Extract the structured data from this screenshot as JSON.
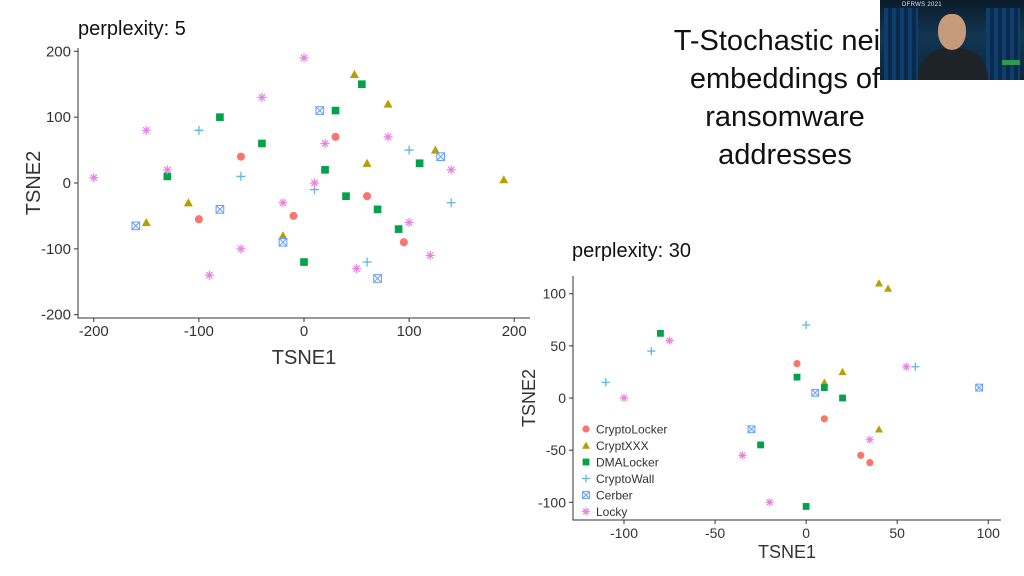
{
  "slide": {
    "title": "T-Stochastic neig\nembeddings of\nransomware\naddresses"
  },
  "webcam": {
    "banner_text": "DFRWS 2021"
  },
  "legend_entries": [
    {
      "label": "CryptoLocker",
      "color": "#F8766D",
      "shape": "circle"
    },
    {
      "label": "CryptXXX",
      "color": "#B79F00",
      "shape": "triangle"
    },
    {
      "label": "DMALocker",
      "color": "#00A34A",
      "shape": "square"
    },
    {
      "label": "CryptoWall",
      "color": "#5FB8D8",
      "shape": "plus"
    },
    {
      "label": "Cerber",
      "color": "#619CFF",
      "shape": "boxcross"
    },
    {
      "label": "Locky",
      "color": "#E882E0",
      "shape": "asterisk"
    }
  ],
  "chart_data": [
    {
      "type": "scatter",
      "title": "perplexity: 5",
      "xlabel": "TSNE1",
      "ylabel": "TSNE2",
      "xlim": [
        -215,
        215
      ],
      "ylim": [
        -205,
        205
      ],
      "xticks": [
        -200,
        -100,
        0,
        100,
        200
      ],
      "yticks": [
        -200,
        -100,
        0,
        100,
        200
      ],
      "xtick_labels": [
        "-200",
        "-100",
        "0",
        "100",
        "200"
      ],
      "ytick_labels": [
        "-200",
        "-100",
        "0",
        "100",
        "200"
      ],
      "grid": false,
      "legend": "none",
      "series": [
        {
          "name": "CryptoLocker",
          "x": [
            -100,
            30,
            95,
            -60,
            60,
            -10
          ],
          "y": [
            -55,
            70,
            -90,
            40,
            -20,
            -50
          ]
        },
        {
          "name": "CryptXXX",
          "x": [
            48,
            -110,
            -150,
            190,
            125,
            80,
            -20,
            60
          ],
          "y": [
            165,
            -30,
            -60,
            5,
            50,
            120,
            -80,
            30
          ]
        },
        {
          "name": "DMALocker",
          "x": [
            20,
            -40,
            70,
            110,
            -80,
            40,
            55,
            -130,
            0,
            90,
            30
          ],
          "y": [
            20,
            60,
            -40,
            30,
            100,
            -20,
            150,
            10,
            -120,
            -70,
            110
          ]
        },
        {
          "name": "CryptoWall",
          "x": [
            10,
            -100,
            60,
            140,
            -60,
            100
          ],
          "y": [
            -10,
            80,
            -120,
            -30,
            10,
            50
          ]
        },
        {
          "name": "Cerber",
          "x": [
            -160,
            15,
            70,
            130,
            -20,
            -80
          ],
          "y": [
            -65,
            110,
            -145,
            40,
            -90,
            -40
          ]
        },
        {
          "name": "Locky",
          "x": [
            0,
            10,
            -200,
            -20,
            -130,
            80,
            -60,
            140,
            50,
            -150,
            100,
            -40,
            20,
            120,
            -90
          ],
          "y": [
            190,
            0,
            8,
            -30,
            20,
            70,
            -100,
            20,
            -130,
            80,
            -60,
            130,
            60,
            -110,
            -140
          ]
        }
      ]
    },
    {
      "type": "scatter",
      "title": "perplexity: 30",
      "xlabel": "TSNE1",
      "ylabel": "TSNE2",
      "xlim": [
        -128,
        107
      ],
      "ylim": [
        -117,
        117
      ],
      "xticks": [
        -100,
        -50,
        0,
        50,
        100
      ],
      "yticks": [
        -100,
        -50,
        0,
        50,
        100
      ],
      "xtick_labels": [
        "-100",
        "-50",
        "0",
        "50",
        "100"
      ],
      "ytick_labels": [
        "-100",
        "-50",
        "0",
        "50",
        "100"
      ],
      "grid": false,
      "legend": "bottom-left",
      "series": [
        {
          "name": "CryptoLocker",
          "x": [
            -5,
            35,
            10,
            30
          ],
          "y": [
            33,
            -62,
            -20,
            -55
          ]
        },
        {
          "name": "CryptXXX",
          "x": [
            40,
            45,
            20,
            40,
            10
          ],
          "y": [
            110,
            105,
            25,
            -30,
            15
          ]
        },
        {
          "name": "DMALocker",
          "x": [
            -80,
            -5,
            10,
            20,
            -25,
            0
          ],
          "y": [
            62,
            20,
            10,
            0,
            -45,
            -104
          ]
        },
        {
          "name": "CryptoWall",
          "x": [
            -85,
            0,
            60,
            -110
          ],
          "y": [
            45,
            70,
            30,
            15
          ]
        },
        {
          "name": "Cerber",
          "x": [
            95,
            -30,
            5
          ],
          "y": [
            10,
            -30,
            5
          ]
        },
        {
          "name": "Locky",
          "x": [
            -75,
            -100,
            55,
            35,
            -35,
            -20
          ],
          "y": [
            55,
            0,
            30,
            -40,
            -55,
            -100
          ]
        }
      ]
    }
  ]
}
